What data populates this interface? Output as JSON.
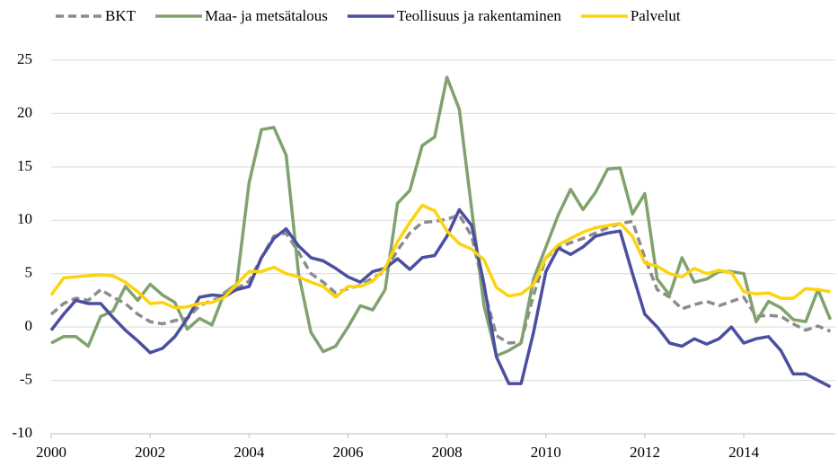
{
  "chart_data": {
    "type": "line",
    "x": [
      2000,
      2000.25,
      2000.5,
      2000.75,
      2001,
      2001.25,
      2001.5,
      2001.75,
      2002,
      2002.25,
      2002.5,
      2002.75,
      2003,
      2003.25,
      2003.5,
      2003.75,
      2004,
      2004.25,
      2004.5,
      2004.75,
      2005,
      2005.25,
      2005.5,
      2005.75,
      2006,
      2006.25,
      2006.5,
      2006.75,
      2007,
      2007.25,
      2007.5,
      2007.75,
      2008,
      2008.25,
      2008.5,
      2008.75,
      2009,
      2009.25,
      2009.5,
      2009.75,
      2010,
      2010.25,
      2010.5,
      2010.75,
      2011,
      2011.25,
      2011.5,
      2011.75,
      2012,
      2012.25,
      2012.5,
      2012.75,
      2013,
      2013.25,
      2013.5,
      2013.75,
      2014,
      2014.25,
      2014.5,
      2014.75,
      2015,
      2015.25,
      2015.5,
      2015.75
    ],
    "series": [
      {
        "name": "BKT",
        "color": "#8c8c8c",
        "dashed": true,
        "values": [
          1.2,
          2.2,
          2.7,
          2.5,
          3.5,
          2.8,
          2.2,
          1.2,
          0.5,
          0.3,
          0.6,
          0.8,
          2.0,
          2.5,
          2.8,
          3.6,
          4.3,
          6.5,
          8.5,
          8.8,
          7.0,
          5.0,
          4.2,
          3.2,
          3.6,
          3.9,
          4.6,
          5.2,
          7.2,
          8.8,
          9.8,
          9.9,
          10.1,
          10.5,
          8.5,
          3.5,
          -0.8,
          -1.5,
          -1.4,
          3.0,
          6.5,
          7.4,
          7.9,
          8.3,
          8.8,
          9.3,
          9.7,
          9.9,
          6.5,
          3.5,
          2.8,
          1.7,
          2.1,
          2.4,
          2.0,
          2.4,
          2.8,
          1.0,
          1.1,
          1.0,
          0.3,
          -0.3,
          0.1,
          -0.4
        ]
      },
      {
        "name": "Maa- ja metsätalous",
        "color": "#80a26f",
        "values": [
          -1.5,
          -0.9,
          -0.9,
          -1.8,
          1.0,
          1.5,
          3.8,
          2.5,
          4.0,
          3.0,
          2.3,
          -0.2,
          0.8,
          0.2,
          3.2,
          4.0,
          13.5,
          18.5,
          18.7,
          16.1,
          5.0,
          -0.5,
          -2.3,
          -1.8,
          0,
          2.0,
          1.6,
          3.5,
          11.6,
          12.8,
          17.0,
          17.8,
          23.4,
          20.4,
          11.0,
          2.0,
          -2.7,
          -2.2,
          -1.5,
          4.5,
          7.5,
          10.5,
          12.9,
          11.0,
          12.6,
          14.8,
          14.9,
          10.6,
          12.5,
          4.5,
          3.0,
          6.5,
          4.2,
          4.5,
          5.2,
          5.2,
          5.0,
          0.5,
          2.4,
          1.8,
          0.7,
          0.5,
          3.5,
          0.7
        ]
      },
      {
        "name": "Teollisuus ja rakentaminen",
        "color": "#4b4f9f",
        "values": [
          -0.3,
          1.2,
          2.5,
          2.2,
          2.2,
          0.9,
          -0.3,
          -1.3,
          -2.4,
          -2.0,
          -0.9,
          0.8,
          2.8,
          3.0,
          2.9,
          3.5,
          3.8,
          6.5,
          8.3,
          9.2,
          7.6,
          6.5,
          6.2,
          5.5,
          4.7,
          4.2,
          5.2,
          5.5,
          6.4,
          5.4,
          6.5,
          6.7,
          8.5,
          11.0,
          9.5,
          4.0,
          -2.8,
          -5.3,
          -5.3,
          -0.5,
          5.2,
          7.4,
          6.8,
          7.5,
          8.5,
          8.8,
          9.0,
          5.0,
          1.2,
          0,
          -1.5,
          -1.8,
          -1.1,
          -1.6,
          -1.1,
          0,
          -1.5,
          -1.1,
          -0.9,
          -2.2,
          -4.4,
          -4.4,
          -5.0,
          -5.6
        ]
      },
      {
        "name": "Palvelut",
        "color": "#fdd30e",
        "values": [
          3.0,
          4.6,
          4.7,
          4.8,
          4.9,
          4.8,
          4.2,
          3.3,
          2.2,
          2.3,
          1.8,
          1.9,
          2.2,
          2.3,
          2.8,
          4.0,
          5.2,
          5.2,
          5.6,
          5.0,
          4.7,
          4.2,
          3.8,
          2.8,
          3.8,
          3.8,
          4.3,
          5.5,
          8.0,
          9.8,
          11.4,
          10.9,
          9.0,
          7.8,
          7.3,
          6.3,
          3.7,
          2.9,
          3.1,
          4.0,
          6.5,
          7.7,
          8.3,
          8.9,
          9.3,
          9.5,
          9.7,
          8.5,
          6.0,
          5.7,
          5.0,
          4.7,
          5.5,
          5.0,
          5.3,
          5.1,
          3.3,
          3.1,
          3.2,
          2.7,
          2.7,
          3.6,
          3.5,
          3.3
        ]
      }
    ],
    "xlim": [
      2000,
      2015.85
    ],
    "xticks": [
      2000,
      2002,
      2004,
      2006,
      2008,
      2010,
      2012,
      2014
    ],
    "ylim": [
      -10,
      25
    ],
    "yticks": [
      -10,
      -5,
      0,
      5,
      10,
      15,
      20,
      25
    ],
    "grid": true,
    "legend": "top"
  }
}
